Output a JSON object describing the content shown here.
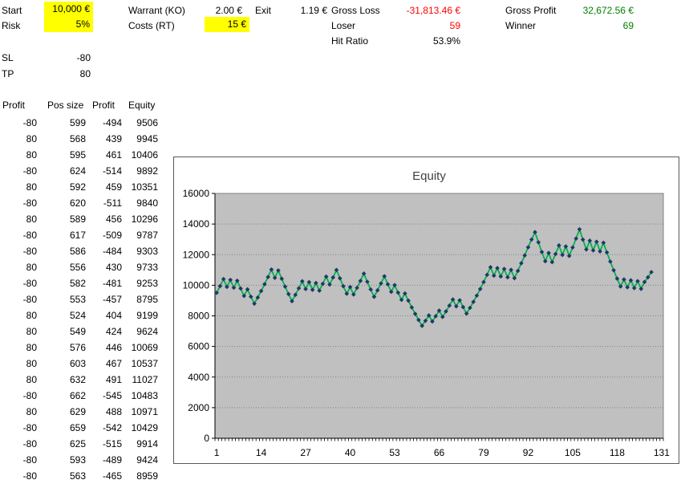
{
  "params": {
    "start": {
      "label": "Start",
      "value": "10,000 €"
    },
    "risk": {
      "label": "Risk",
      "value": "5%"
    },
    "warrant": {
      "label": "Warrant (KO)",
      "value": "2.00 €"
    },
    "costs": {
      "label": "Costs (RT)",
      "value": "15 €"
    },
    "exit": {
      "label": "Exit",
      "value": "1.19 €"
    },
    "gross_loss": {
      "label": "Gross Loss",
      "value": "-31,813.46 €"
    },
    "loser": {
      "label": "Loser",
      "value": "59"
    },
    "hit_ratio": {
      "label": "Hit Ratio",
      "value": "53.9%"
    },
    "gross_profit": {
      "label": "Gross Profit",
      "value": "32,672.56 €"
    },
    "winner": {
      "label": "Winner",
      "value": "69"
    },
    "sl": {
      "label": "SL",
      "value": "-80"
    },
    "tp": {
      "label": "TP",
      "value": "80"
    }
  },
  "colors": {
    "highlight": "#FFFF00",
    "loss_text": "#FF0000",
    "profit_text": "#008000",
    "line": "#00B050",
    "marker": "#1F3864",
    "plot_bg": "#C0C0C0",
    "gridline": "#848284"
  },
  "trade_table": {
    "headers": [
      "Profit",
      "Pos size",
      "Profit",
      "Equity"
    ],
    "rows": [
      [
        -80,
        599,
        -494,
        9506
      ],
      [
        80,
        568,
        439,
        9945
      ],
      [
        80,
        595,
        461,
        10406
      ],
      [
        -80,
        624,
        -514,
        9892
      ],
      [
        80,
        592,
        459,
        10351
      ],
      [
        -80,
        620,
        -511,
        9840
      ],
      [
        80,
        589,
        456,
        10296
      ],
      [
        -80,
        617,
        -509,
        9787
      ],
      [
        -80,
        586,
        -484,
        9303
      ],
      [
        80,
        556,
        430,
        9733
      ],
      [
        -80,
        582,
        -481,
        9253
      ],
      [
        -80,
        553,
        -457,
        8795
      ],
      [
        80,
        524,
        404,
        9199
      ],
      [
        80,
        549,
        424,
        9624
      ],
      [
        80,
        576,
        446,
        10069
      ],
      [
        80,
        603,
        467,
        10537
      ],
      [
        80,
        632,
        491,
        11027
      ],
      [
        -80,
        662,
        -545,
        10483
      ],
      [
        80,
        629,
        488,
        10971
      ],
      [
        -80,
        659,
        -542,
        10429
      ],
      [
        -80,
        625,
        -515,
        9914
      ],
      [
        -80,
        593,
        -489,
        9424
      ],
      [
        -80,
        563,
        -465,
        8959
      ]
    ]
  },
  "chart_data": {
    "type": "line",
    "title": "Equity",
    "xlabel": "",
    "ylabel": "",
    "ylim": [
      0,
      16000
    ],
    "ytick_step": 2000,
    "yticks": [
      0,
      2000,
      4000,
      6000,
      8000,
      10000,
      12000,
      14000,
      16000
    ],
    "x_categories_total": 131,
    "xticks": [
      1,
      14,
      27,
      40,
      53,
      66,
      79,
      92,
      105,
      118,
      131
    ],
    "grid": "horizontal-dotted",
    "legend": "none",
    "values": [
      9506,
      9945,
      10406,
      9892,
      10351,
      9840,
      10296,
      9787,
      9303,
      9733,
      9253,
      8795,
      9199,
      9624,
      10069,
      10537,
      11027,
      10483,
      10971,
      10429,
      9914,
      9424,
      8959,
      9372,
      9805,
      10260,
      9753,
      10205,
      9701,
      10150,
      9649,
      10096,
      10565,
      10043,
      10509,
      10998,
      10455,
      9938,
      9447,
      9884,
      9395,
      9829,
      10284,
      10762,
      10230,
      9725,
      9244,
      9671,
      10118,
      10588,
      10065,
      9568,
      10011,
      9517,
      9047,
      9464,
      8996,
      8551,
      8129,
      7728,
      7346,
      7679,
      8028,
      7631,
      7978,
      8342,
      7930,
      8292,
      8671,
      9070,
      8622,
      9018,
      8573,
      8149,
      8522,
      8913,
      9324,
      9755,
      10207,
      10682,
      11180,
      10627,
      11122,
      10573,
      11065,
      10518,
      11008,
      10464,
      10940,
      11440,
      11950,
      12480,
      12990,
      13471,
      12806,
      12173,
      11572,
      12109,
      11511,
      12045,
      12604,
      11981,
      12537,
      11918,
      12471,
      13050,
      13656,
      12981,
      12340,
      12913,
      12275,
      12845,
      12211,
      12778,
      12147,
      11547,
      10977,
      10435,
      9919,
      10379,
      9866,
      10324,
      9814,
      10269,
      9762,
      10215,
      10520,
      10859
    ]
  }
}
